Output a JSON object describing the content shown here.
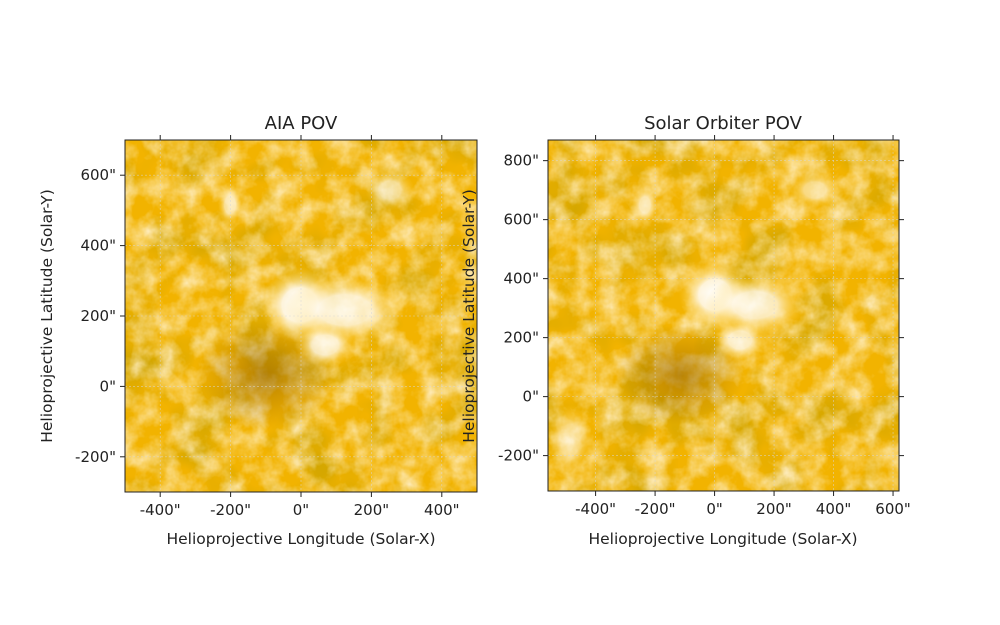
{
  "figure": {
    "panels": [
      {
        "title": "AIA POV",
        "xlabel": "Helioprojective Longitude (Solar-X)",
        "ylabel": "Helioprojective Latitude (Solar-Y)",
        "xlim": [
          -500,
          500
        ],
        "ylim": [
          -300,
          700
        ],
        "xticks": [
          -400,
          -200,
          0,
          200,
          400
        ],
        "yticks": [
          -200,
          0,
          200,
          400,
          600
        ],
        "xtick_labels": [
          "-400\"",
          "-200\"",
          "0\"",
          "200\"",
          "400\""
        ],
        "ytick_labels": [
          "-200\"",
          "0\"",
          "200\"",
          "400\"",
          "600\""
        ],
        "ticks_side": "left",
        "grid": true
      },
      {
        "title": "Solar Orbiter POV",
        "xlabel": "Helioprojective Longitude (Solar-X)",
        "ylabel": "Helioprojective Latitude (Solar-Y)",
        "xlim": [
          -560,
          620
        ],
        "ylim": [
          -320,
          870
        ],
        "xticks": [
          -400,
          -200,
          0,
          200,
          400,
          600
        ],
        "yticks": [
          -200,
          0,
          200,
          400,
          600,
          800
        ],
        "xtick_labels": [
          "-400\"",
          "-200\"",
          "0\"",
          "200\"",
          "400\"",
          "600\""
        ],
        "ytick_labels": [
          "-200\"",
          "0\"",
          "200\"",
          "400\"",
          "600\"",
          "800\""
        ],
        "ticks_side": "both",
        "grid": true
      }
    ],
    "colors": {
      "base": "#f2b300",
      "dark": "#a86f00",
      "bright": "#ffffff",
      "grid": "#d8d8d8"
    }
  }
}
